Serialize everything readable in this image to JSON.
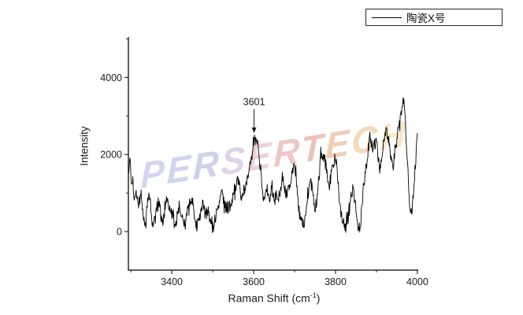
{
  "page": {
    "background": "#ffffff"
  },
  "legend": {
    "label": "陶瓷X号",
    "line_color": "#000000"
  },
  "watermark": {
    "text": "PERSERTECH",
    "letters": [
      {
        "ch": "P",
        "color": "#b2b5e4"
      },
      {
        "ch": "E",
        "color": "#adb1e2"
      },
      {
        "ch": "R",
        "color": "#a8ade0"
      },
      {
        "ch": "S",
        "color": "#c4b2d8"
      },
      {
        "ch": "E",
        "color": "#e3aab8"
      },
      {
        "ch": "R",
        "color": "#df9a9c"
      },
      {
        "ch": "T",
        "color": "#e09184"
      },
      {
        "ch": "E",
        "color": "#e6a87e"
      },
      {
        "ch": "C",
        "color": "#ecbc80"
      },
      {
        "ch": "H",
        "color": "#eed898"
      }
    ]
  },
  "annotation": {
    "label": "3601",
    "x": 3601,
    "arrow_tail_intensity": 3180,
    "arrow_tip_intensity": 2560
  },
  "chart_data": {
    "type": "line",
    "title": "",
    "ylabel": "Intensity",
    "xlabel_parts": {
      "pre": "Raman Shift (cm",
      "sup": "-1",
      "post": ")"
    },
    "xlim": [
      3294,
      4002
    ],
    "ylim": [
      -1000,
      5050
    ],
    "x_major_ticks": [
      3400,
      3600,
      3800,
      4000
    ],
    "x_minor_ticks": [
      3300,
      3500,
      3700,
      3900
    ],
    "y_major_ticks": [
      0,
      2000,
      4000
    ],
    "y_minor_ticks": [
      1000,
      3000,
      5000
    ],
    "grid": false,
    "legend_position": "top-right",
    "axis_color": "#2b2b2b",
    "series": [
      {
        "name": "陶瓷X号",
        "color": "#000000",
        "noise_amplitude": 165,
        "noise_seed": 77,
        "interp_step": 1.1,
        "anchors": [
          [
            3295,
            1600
          ],
          [
            3298,
            1900
          ],
          [
            3301,
            1150
          ],
          [
            3305,
            1350
          ],
          [
            3309,
            800
          ],
          [
            3313,
            1050
          ],
          [
            3318,
            650
          ],
          [
            3322,
            850
          ],
          [
            3326,
            950
          ],
          [
            3330,
            350
          ],
          [
            3334,
            150
          ],
          [
            3338,
            450
          ],
          [
            3342,
            800
          ],
          [
            3346,
            1000
          ],
          [
            3350,
            450
          ],
          [
            3354,
            100
          ],
          [
            3358,
            250
          ],
          [
            3362,
            700
          ],
          [
            3366,
            550
          ],
          [
            3370,
            700
          ],
          [
            3374,
            400
          ],
          [
            3378,
            250
          ],
          [
            3382,
            500
          ],
          [
            3386,
            800
          ],
          [
            3390,
            850
          ],
          [
            3394,
            650
          ],
          [
            3398,
            500
          ],
          [
            3402,
            350
          ],
          [
            3406,
            200
          ],
          [
            3410,
            150
          ],
          [
            3414,
            400
          ],
          [
            3418,
            650
          ],
          [
            3422,
            550
          ],
          [
            3426,
            350
          ],
          [
            3430,
            120
          ],
          [
            3434,
            280
          ],
          [
            3438,
            520
          ],
          [
            3442,
            680
          ],
          [
            3446,
            780
          ],
          [
            3450,
            820
          ],
          [
            3454,
            480
          ],
          [
            3458,
            200
          ],
          [
            3462,
            100
          ],
          [
            3466,
            300
          ],
          [
            3470,
            480
          ],
          [
            3474,
            700
          ],
          [
            3478,
            620
          ],
          [
            3482,
            420
          ],
          [
            3486,
            520
          ],
          [
            3490,
            480
          ],
          [
            3494,
            300
          ],
          [
            3498,
            130
          ],
          [
            3502,
            160
          ],
          [
            3506,
            350
          ],
          [
            3510,
            520
          ],
          [
            3514,
            680
          ],
          [
            3518,
            900
          ],
          [
            3522,
            1020
          ],
          [
            3526,
            820
          ],
          [
            3530,
            640
          ],
          [
            3534,
            520
          ],
          [
            3538,
            560
          ],
          [
            3542,
            660
          ],
          [
            3546,
            760
          ],
          [
            3550,
            900
          ],
          [
            3554,
            1060
          ],
          [
            3558,
            1240
          ],
          [
            3562,
            1300
          ],
          [
            3566,
            1120
          ],
          [
            3570,
            950
          ],
          [
            3574,
            1020
          ],
          [
            3578,
            1120
          ],
          [
            3582,
            1240
          ],
          [
            3586,
            1350
          ],
          [
            3590,
            1600
          ],
          [
            3594,
            1850
          ],
          [
            3598,
            2150
          ],
          [
            3601,
            2420
          ],
          [
            3604,
            2280
          ],
          [
            3607,
            2350
          ],
          [
            3610,
            2180
          ],
          [
            3613,
            1950
          ],
          [
            3616,
            1700
          ],
          [
            3620,
            1250
          ],
          [
            3624,
            800
          ],
          [
            3628,
            950
          ],
          [
            3632,
            1100
          ],
          [
            3636,
            980
          ],
          [
            3640,
            900
          ],
          [
            3644,
            1150
          ],
          [
            3648,
            1020
          ],
          [
            3652,
            850
          ],
          [
            3656,
            950
          ],
          [
            3660,
            900
          ],
          [
            3664,
            1050
          ],
          [
            3668,
            1250
          ],
          [
            3672,
            1350
          ],
          [
            3676,
            1150
          ],
          [
            3680,
            950
          ],
          [
            3684,
            1000
          ],
          [
            3688,
            1150
          ],
          [
            3692,
            1400
          ],
          [
            3696,
            1550
          ],
          [
            3700,
            1720
          ],
          [
            3704,
            1350
          ],
          [
            3708,
            850
          ],
          [
            3712,
            450
          ],
          [
            3716,
            250
          ],
          [
            3720,
            180
          ],
          [
            3724,
            300
          ],
          [
            3728,
            550
          ],
          [
            3732,
            850
          ],
          [
            3736,
            1100
          ],
          [
            3740,
            1280
          ],
          [
            3744,
            980
          ],
          [
            3748,
            600
          ],
          [
            3752,
            700
          ],
          [
            3756,
            950
          ],
          [
            3760,
            1400
          ],
          [
            3764,
            2050
          ],
          [
            3768,
            1850
          ],
          [
            3772,
            1900
          ],
          [
            3776,
            1800
          ],
          [
            3780,
            1450
          ],
          [
            3784,
            1250
          ],
          [
            3788,
            1400
          ],
          [
            3792,
            1600
          ],
          [
            3796,
            1800
          ],
          [
            3800,
            1950
          ],
          [
            3804,
            1600
          ],
          [
            3808,
            1050
          ],
          [
            3812,
            550
          ],
          [
            3816,
            250
          ],
          [
            3820,
            120
          ],
          [
            3824,
            60
          ],
          [
            3828,
            250
          ],
          [
            3832,
            600
          ],
          [
            3836,
            850
          ],
          [
            3840,
            1050
          ],
          [
            3844,
            1150
          ],
          [
            3848,
            700
          ],
          [
            3852,
            250
          ],
          [
            3856,
            80
          ],
          [
            3860,
            120
          ],
          [
            3864,
            550
          ],
          [
            3868,
            1100
          ],
          [
            3872,
            1500
          ],
          [
            3876,
            1850
          ],
          [
            3880,
            2200
          ],
          [
            3884,
            2480
          ],
          [
            3888,
            2320
          ],
          [
            3892,
            2150
          ],
          [
            3896,
            2250
          ],
          [
            3900,
            2350
          ],
          [
            3904,
            1950
          ],
          [
            3908,
            1550
          ],
          [
            3912,
            1900
          ],
          [
            3916,
            2300
          ],
          [
            3920,
            2550
          ],
          [
            3924,
            2680
          ],
          [
            3928,
            2450
          ],
          [
            3932,
            2250
          ],
          [
            3936,
            1950
          ],
          [
            3940,
            1600
          ],
          [
            3944,
            2000
          ],
          [
            3948,
            2400
          ],
          [
            3952,
            2600
          ],
          [
            3956,
            2800
          ],
          [
            3960,
            3050
          ],
          [
            3964,
            3300
          ],
          [
            3967,
            3380
          ],
          [
            3970,
            2900
          ],
          [
            3974,
            2100
          ],
          [
            3978,
            1200
          ],
          [
            3982,
            600
          ],
          [
            3986,
            400
          ],
          [
            3990,
            1000
          ],
          [
            3994,
            1600
          ],
          [
            3998,
            2200
          ],
          [
            4001,
            2550
          ]
        ]
      }
    ]
  }
}
